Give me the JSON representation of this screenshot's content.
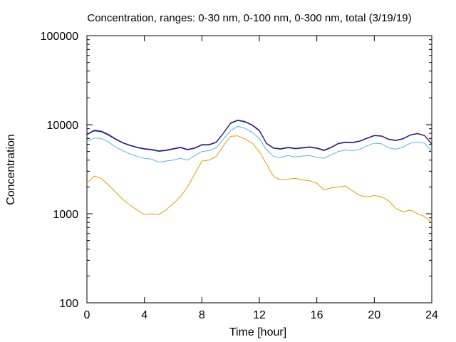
{
  "chart_data": {
    "type": "line",
    "title": "Concentration, ranges: 0-30 nm, 0-100 nm, 0-300 nm, total (3/19/19)",
    "xlabel": "Time [hour]",
    "ylabel": "Concentration",
    "xlim": [
      0,
      24
    ],
    "ylim": [
      100,
      100000
    ],
    "yscale": "log",
    "grid": false,
    "legend": "none",
    "x_ticks": [
      0,
      4,
      8,
      12,
      16,
      20,
      24
    ],
    "x_tick_labels": [
      "0",
      "4",
      "8",
      "12",
      "16",
      "20",
      "24"
    ],
    "y_ticks": [
      100,
      1000,
      10000,
      100000
    ],
    "y_tick_labels": [
      "100",
      "1000",
      "10000",
      "100000"
    ],
    "x": [
      0,
      0.5,
      1,
      1.5,
      2,
      2.5,
      3,
      3.5,
      4,
      4.5,
      5,
      5.5,
      6,
      6.5,
      7,
      7.5,
      8,
      8.5,
      9,
      9.5,
      10,
      10.5,
      11,
      11.5,
      12,
      12.5,
      13,
      13.5,
      14,
      14.5,
      15,
      15.5,
      16,
      16.5,
      17,
      17.5,
      18,
      18.5,
      19,
      19.5,
      20,
      20.5,
      21,
      21.5,
      22,
      22.5,
      23,
      23.5,
      24
    ],
    "series": [
      {
        "color": "#e69f00",
        "values": [
          2200,
          2650,
          2500,
          2100,
          1750,
          1450,
          1250,
          1100,
          980,
          1000,
          980,
          1100,
          1300,
          1550,
          2000,
          2800,
          3900,
          4000,
          4400,
          5800,
          7400,
          7500,
          6900,
          6200,
          5000,
          3600,
          2600,
          2400,
          2450,
          2500,
          2400,
          2350,
          2200,
          1850,
          1950,
          2000,
          2050,
          1800,
          1600,
          1550,
          1600,
          1550,
          1400,
          1150,
          1050,
          1100,
          1000,
          930,
          800
        ]
      },
      {
        "color": "#56b4e9",
        "values": [
          6500,
          7100,
          7000,
          6400,
          5600,
          5100,
          4700,
          4400,
          4200,
          4100,
          3800,
          3900,
          4000,
          4200,
          4000,
          4500,
          5000,
          5100,
          5500,
          6900,
          8600,
          9600,
          9100,
          8200,
          7000,
          5200,
          4400,
          4300,
          4500,
          4350,
          4450,
          4500,
          4300,
          4200,
          4600,
          5000,
          5200,
          5100,
          5300,
          5800,
          6200,
          6100,
          5500,
          5300,
          5600,
          6200,
          6400,
          6200,
          5000
        ]
      },
      {
        "color": "#009e73",
        "values": [
          7700,
          8500,
          8300,
          7600,
          6800,
          6200,
          5800,
          5500,
          5300,
          5200,
          5000,
          5100,
          5300,
          5500,
          5200,
          5400,
          5900,
          5900,
          6300,
          8000,
          10300,
          11100,
          10700,
          9800,
          8500,
          6100,
          5400,
          5300,
          5500,
          5350,
          5450,
          5550,
          5400,
          5100,
          5500,
          6100,
          6300,
          6250,
          6500,
          7000,
          7500,
          7400,
          6800,
          6600,
          6900,
          7600,
          7900,
          7500,
          6000
        ]
      },
      {
        "color": "#cc00cc",
        "values": [
          7800,
          8700,
          8500,
          7800,
          6950,
          6300,
          5900,
          5600,
          5400,
          5300,
          5100,
          5200,
          5400,
          5600,
          5300,
          5500,
          6000,
          6000,
          6400,
          8100,
          10500,
          11300,
          10900,
          10000,
          8700,
          6200,
          5500,
          5400,
          5600,
          5450,
          5550,
          5650,
          5500,
          5200,
          5600,
          6200,
          6400,
          6350,
          6600,
          7100,
          7600,
          7500,
          6900,
          6700,
          7000,
          7700,
          8000,
          7600,
          6100
        ]
      },
      {
        "color": "#1a1a6e",
        "values": [
          7700,
          8600,
          8400,
          7700,
          6900,
          6250,
          5850,
          5550,
          5350,
          5250,
          5050,
          5150,
          5350,
          5550,
          5250,
          5450,
          5950,
          5950,
          6350,
          8050,
          10400,
          11200,
          10800,
          9900,
          8600,
          6150,
          5450,
          5350,
          5550,
          5400,
          5500,
          5600,
          5450,
          5150,
          5550,
          6150,
          6350,
          6300,
          6550,
          7050,
          7550,
          7450,
          6850,
          6650,
          6950,
          7650,
          7950,
          7550,
          6050
        ]
      }
    ]
  }
}
